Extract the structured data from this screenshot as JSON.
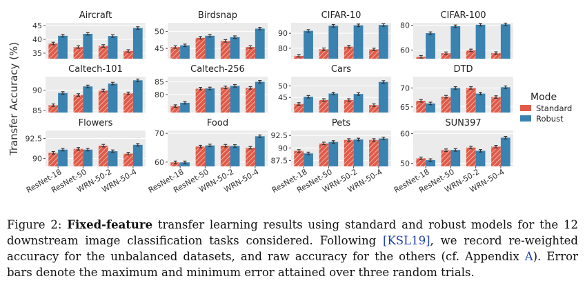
{
  "chart_data": {
    "type": "bar",
    "ylabel": "Transfer Accuracy (%)",
    "categories": [
      "ResNet-18",
      "ResNet-50",
      "WRN-50-2",
      "WRN-50-4"
    ],
    "legend": {
      "title": "Mode",
      "entries": [
        {
          "name": "Standard",
          "color": "#e05a48"
        },
        {
          "name": "Robust",
          "color": "#3a82b0"
        }
      ],
      "placement": "right"
    },
    "grid": true,
    "panels": [
      {
        "title": "Aircraft",
        "ylim": [
          33,
          46
        ],
        "yticks": [
          35,
          40,
          45
        ],
        "series": [
          {
            "name": "Standard",
            "values": [
              38.5,
              37.2,
              37.6,
              35.8
            ]
          },
          {
            "name": "Robust",
            "values": [
              41.3,
              42.0,
              41.2,
              44.1
            ]
          }
        ]
      },
      {
        "title": "Birdsnap",
        "ylim": [
          42,
          52.5
        ],
        "yticks": [
          45,
          50
        ],
        "series": [
          {
            "name": "Standard",
            "values": [
              45.4,
              48.1,
              47.2,
              45.4
            ]
          },
          {
            "name": "Robust",
            "values": [
              45.9,
              48.7,
              48.3,
              50.8
            ]
          }
        ]
      },
      {
        "title": "CIFAR-10",
        "ylim": [
          73,
          97
        ],
        "yticks": [
          80,
          90
        ],
        "series": [
          {
            "name": "Standard",
            "values": [
              74.9,
              79.3,
              81.0,
              79.2
            ]
          },
          {
            "name": "Robust",
            "values": [
              91.6,
              95.0,
              95.3,
              95.5
            ]
          }
        ]
      },
      {
        "title": "CIFAR-100",
        "ylim": [
          53,
          82
        ],
        "yticks": [
          60,
          80
        ],
        "series": [
          {
            "name": "Standard",
            "values": [
              54.5,
              57.4,
              59.7,
              57.5
            ]
          },
          {
            "name": "Robust",
            "values": [
              73.6,
              79.2,
              80.4,
              80.7
            ]
          }
        ]
      },
      {
        "title": "Caltech-101",
        "ylim": [
          84.5,
          93.3
        ],
        "yticks": [
          85,
          90
        ],
        "series": [
          {
            "name": "Standard",
            "values": [
              86.3,
              88.8,
              89.9,
              89.2
            ]
          },
          {
            "name": "Robust",
            "values": [
              89.3,
              90.9,
              91.6,
              92.4
            ]
          }
        ]
      },
      {
        "title": "Caltech-256",
        "ylim": [
          73,
          87
        ],
        "yticks": [
          80,
          85
        ],
        "series": [
          {
            "name": "Standard",
            "values": [
              75.5,
              82.3,
              82.8,
              82.6
            ]
          },
          {
            "name": "Robust",
            "values": [
              76.8,
              82.4,
              83.4,
              85.0
            ]
          }
        ]
      },
      {
        "title": "Cars",
        "ylim": [
          38.5,
          54
        ],
        "yticks": [
          45,
          50
        ],
        "series": [
          {
            "name": "Standard",
            "values": [
              42.2,
              43.9,
              43.9,
              41.7
            ]
          },
          {
            "name": "Robust",
            "values": [
              45.3,
              46.7,
              46.5,
              51.7
            ]
          }
        ]
      },
      {
        "title": "DTD",
        "ylim": [
          63.5,
          73
        ],
        "yticks": [
          65,
          70
        ],
        "series": [
          {
            "name": "Standard",
            "values": [
              66.6,
              67.7,
              70.0,
              67.6
            ]
          },
          {
            "name": "Robust",
            "values": [
              65.9,
              70.0,
              68.5,
              70.2
            ]
          }
        ]
      },
      {
        "title": "Flowers",
        "ylim": [
          89,
          93.5
        ],
        "yticks": [
          90.0,
          92.5
        ],
        "series": [
          {
            "name": "Standard",
            "values": [
              90.7,
              91.2,
              91.6,
              90.6
            ]
          },
          {
            "name": "Robust",
            "values": [
              91.1,
              91.1,
              90.9,
              91.7
            ]
          }
        ]
      },
      {
        "title": "Food",
        "ylim": [
          58.5,
          71
        ],
        "yticks": [
          60,
          70
        ],
        "series": [
          {
            "name": "Standard",
            "values": [
              59.9,
              65.4,
              65.7,
              65.0
            ]
          },
          {
            "name": "Robust",
            "values": [
              59.9,
              65.8,
              65.6,
              69.0
            ]
          }
        ]
      },
      {
        "title": "Pets",
        "ylim": [
          86.3,
          93.5
        ],
        "yticks": [
          87.5,
          90.0,
          92.5
        ],
        "series": [
          {
            "name": "Standard",
            "values": [
              89.4,
              90.9,
              91.6,
              91.6
            ]
          },
          {
            "name": "Robust",
            "values": [
              88.9,
              91.2,
              91.7,
              91.9
            ]
          }
        ]
      },
      {
        "title": "SUN397",
        "ylim": [
          49,
          61
        ],
        "yticks": [
          50,
          60
        ],
        "series": [
          {
            "name": "Standard",
            "values": [
              51.7,
              54.4,
              55.3,
              55.6
            ]
          },
          {
            "name": "Robust",
            "values": [
              51.1,
              54.5,
              54.2,
              58.6
            ]
          }
        ]
      }
    ]
  },
  "caption": {
    "prefix": "Figure 2: ",
    "bold": "Fixed-feature",
    "part1": " transfer learning results using standard and robust models for the 12 downstream image classification tasks considered. Following ",
    "cite": "[KSL19]",
    "part2": ", we record re-weighted accuracy for the unbalanced datasets, and raw accuracy for the others (cf. Appendix ",
    "appendix": "A",
    "part3": "). Error bars denote the maximum and minimum error attained over three random trials."
  }
}
